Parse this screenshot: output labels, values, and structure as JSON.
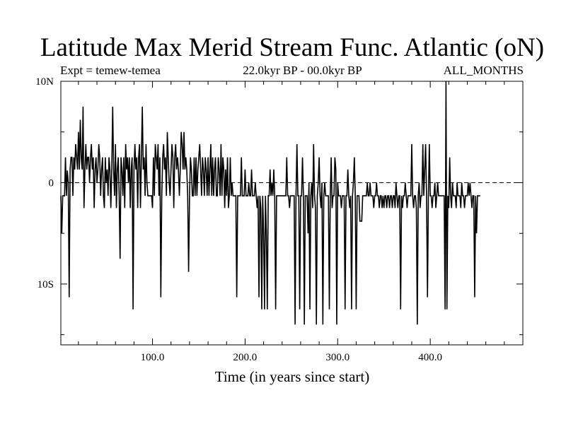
{
  "header": {
    "title": "Latitude Max Merid Stream Func. Atlantic (oN)",
    "experiment": "Expt = temew-temea",
    "period": "22.0kyr BP - 00.0kyr BP",
    "months": "ALL_MONTHS"
  },
  "chart_data": {
    "type": "line",
    "title": "Latitude Max Merid Stream Func. Atlantic (oN)",
    "xlabel": "Time (in years since start)",
    "ylabel": "",
    "xlim": [
      1,
      500
    ],
    "ylim": [
      -16,
      10
    ],
    "x_ticks": [
      100,
      200,
      300,
      400
    ],
    "x_tick_labels": [
      "100.0",
      "200.0",
      "300.0",
      "400.0"
    ],
    "y_ticks": [
      10,
      0,
      -10
    ],
    "y_tick_labels": [
      "10N",
      "0",
      "10S"
    ],
    "zero_line": "dashed",
    "grid": false,
    "line_color": "#000000",
    "series": [
      {
        "name": "",
        "x_start": 1,
        "x_step": 1,
        "values": [
          -1.3,
          -5,
          -1.3,
          -1.3,
          -1.3,
          2.5,
          -1.3,
          1.2,
          0,
          -11.3,
          1.3,
          2.5,
          2.5,
          -1.3,
          2.5,
          1.3,
          3.8,
          2.5,
          1.3,
          5,
          1.3,
          6.2,
          2.5,
          1.3,
          7.5,
          -2.5,
          1.3,
          3.8,
          1.3,
          2.5,
          2.5,
          0,
          2.5,
          3.8,
          1.3,
          2.5,
          -2.5,
          1.3,
          2.5,
          0,
          1.3,
          3.8,
          2.5,
          -1.3,
          1.3,
          2.5,
          -1.3,
          -2.5,
          2.5,
          0,
          1.3,
          -1.3,
          2.5,
          1.3,
          -2.5,
          1.3,
          7.5,
          1.3,
          -1.3,
          3.8,
          -2.5,
          1.3,
          2.5,
          -1.3,
          -7.5,
          2.5,
          1.3,
          -1.3,
          2.5,
          -2.5,
          3.8,
          1.3,
          2.5,
          0,
          2.5,
          -2.5,
          1.3,
          2.5,
          -12.5,
          1.3,
          3.8,
          1.3,
          2.5,
          -2.5,
          2.5,
          3.8,
          -2.5,
          2.5,
          7.5,
          1.3,
          2.5,
          -1.3,
          3.8,
          0,
          -1.3,
          -1.3,
          -1.3,
          -1.3,
          -1.3,
          -2.5,
          2.5,
          -1.3,
          3.8,
          2.5,
          1.3,
          3.8,
          -1.3,
          2.5,
          -11.3,
          -1.3,
          2.5,
          3.8,
          1.3,
          2.5,
          -1.3,
          5,
          2.5,
          0,
          -1.3,
          1.3,
          3.8,
          2.5,
          -2.5,
          2.5,
          3.8,
          1.3,
          2.5,
          1.3,
          -1.3,
          1.3,
          5,
          3.8,
          1.3,
          5,
          1.3,
          2.5,
          1.3,
          -1.3,
          -8.8,
          -1.3,
          2.5,
          1.3,
          -1.3,
          -1.3,
          2.5,
          -1.3,
          2.5,
          -1.3,
          1.3,
          2.5,
          3.8,
          1.3,
          -1.3,
          2.5,
          1.3,
          -1.3,
          2.5,
          1.3,
          -1.3,
          2.5,
          -1.3,
          1.3,
          3.8,
          -1.3,
          2.5,
          -1.3,
          1.3,
          2.5,
          -1.3,
          -1.3,
          2.5,
          1.3,
          -1.3,
          3.8,
          -1.3,
          2.5,
          1.3,
          -2.5,
          1.3,
          -1.3,
          2.5,
          -2.5,
          -1.3,
          2.5,
          -1.3,
          0,
          -1.3,
          -1.3,
          -1.3,
          -1.3,
          -11.3,
          -1.3,
          -1.3,
          -1.3,
          -1.3,
          2.5,
          -1.3,
          -1.3,
          -1.3,
          1.3,
          -1.3,
          -1.3,
          -1.3,
          0,
          -1.3,
          -1.3,
          1.3,
          -1.3,
          -1.3,
          -1.3,
          0,
          -1.3,
          -2.5,
          -1.3,
          -11.3,
          -1.3,
          -2.5,
          -12.5,
          -1.3,
          -5,
          -12.5,
          -1.3,
          -5,
          -12.5,
          -1.3,
          -1.3,
          1.3,
          -1.3,
          0,
          -1.3,
          1.3,
          -1.3,
          -12.5,
          -1.3,
          -1.3,
          -1.3,
          -1.3,
          -1.3,
          -1.3,
          -1.3,
          -1.3,
          -1.3,
          -1.3,
          -1.3,
          2.5,
          -1.3,
          -1.3,
          -2.5,
          -1.3,
          -1.3,
          -1.3,
          -1.3,
          -1.3,
          -14,
          -1.3,
          3.8,
          -1.3,
          -1.3,
          -12.5,
          -1.3,
          -1.3,
          2.5,
          -1.3,
          -14,
          -1.3,
          -1.3,
          -1.3,
          -5,
          0,
          -12.5,
          -1.3,
          0,
          -2.5,
          3.8,
          -1.3,
          -2.5,
          -14,
          -1.3,
          0,
          2.5,
          -1.3,
          -2.5,
          0,
          -14,
          -1.3,
          0,
          -1.3,
          -1.3,
          -1.3,
          -1.3,
          -12.5,
          -1.3,
          2.5,
          -2.5,
          -1.3,
          -1.3,
          2.5,
          1.3,
          -14,
          0,
          -1.3,
          -1.3,
          -1.3,
          -2.5,
          -1.3,
          -1.3,
          -1.3,
          -12.5,
          -1.3,
          -1.3,
          1.3,
          -1.3,
          -2.5,
          -1.3,
          -12.5,
          -1.3,
          0,
          2.5,
          -1.3,
          -12.5,
          -1.3,
          -1.3,
          -1.3,
          -3.8,
          -3.8,
          -3.8,
          -1.3,
          -1.3,
          -1.3,
          -1.3,
          -1.3,
          0,
          -1.3,
          -1.3,
          0,
          -1.3,
          -1.3,
          -1.3,
          -2.5,
          -1.3,
          -1.3,
          0,
          -1.3,
          -1.3,
          -2.5,
          -1.3,
          -1.3,
          -2.5,
          -1.3,
          -2.5,
          -1.3,
          -1.3,
          -2.5,
          -1.3,
          -1.3,
          -2.5,
          -1.3,
          -1.3,
          -2.5,
          -1.3,
          -1.3,
          -2.5,
          0,
          -1.3,
          -2.5,
          -1.3,
          -1.3,
          -12.5,
          -1.3,
          -2.5,
          -1.3,
          -1.3,
          0,
          -1.3,
          -2.5,
          -1.3,
          -1.3,
          -1.3,
          -1.3,
          3.8,
          -1.3,
          -2.5,
          -1.3,
          -1.3,
          -2.5,
          -14,
          -1.3,
          0,
          -2.5,
          -1.3,
          -1.3,
          3.8,
          -1.3,
          1.3,
          3.8,
          -1.3,
          -11.3,
          -1.3,
          3.8,
          -1.3,
          -1.3,
          -2.5,
          -1.3,
          -1.3,
          0,
          -2.5,
          -1.3,
          0,
          -1.3,
          -1.3,
          -1.3,
          -1.3,
          -1.3,
          -1.3,
          -1.3,
          -12.5,
          10,
          -12.5,
          -1.3,
          -2.5,
          2.5,
          -1.3,
          -2.5,
          0,
          -1.3,
          -1.3,
          -1.3,
          -2.5,
          0,
          -1.3,
          -1.3,
          -1.3,
          -2.5,
          0,
          -1.3,
          -1.3,
          -2.5,
          -1.3,
          -1.3,
          -1.3,
          0,
          -1.3,
          0,
          -1.3,
          -2.5,
          -1.3,
          -1.3,
          -11.3,
          -1.3,
          -5,
          -1.3,
          -1.3,
          -1.3,
          -1.3
        ]
      }
    ]
  }
}
